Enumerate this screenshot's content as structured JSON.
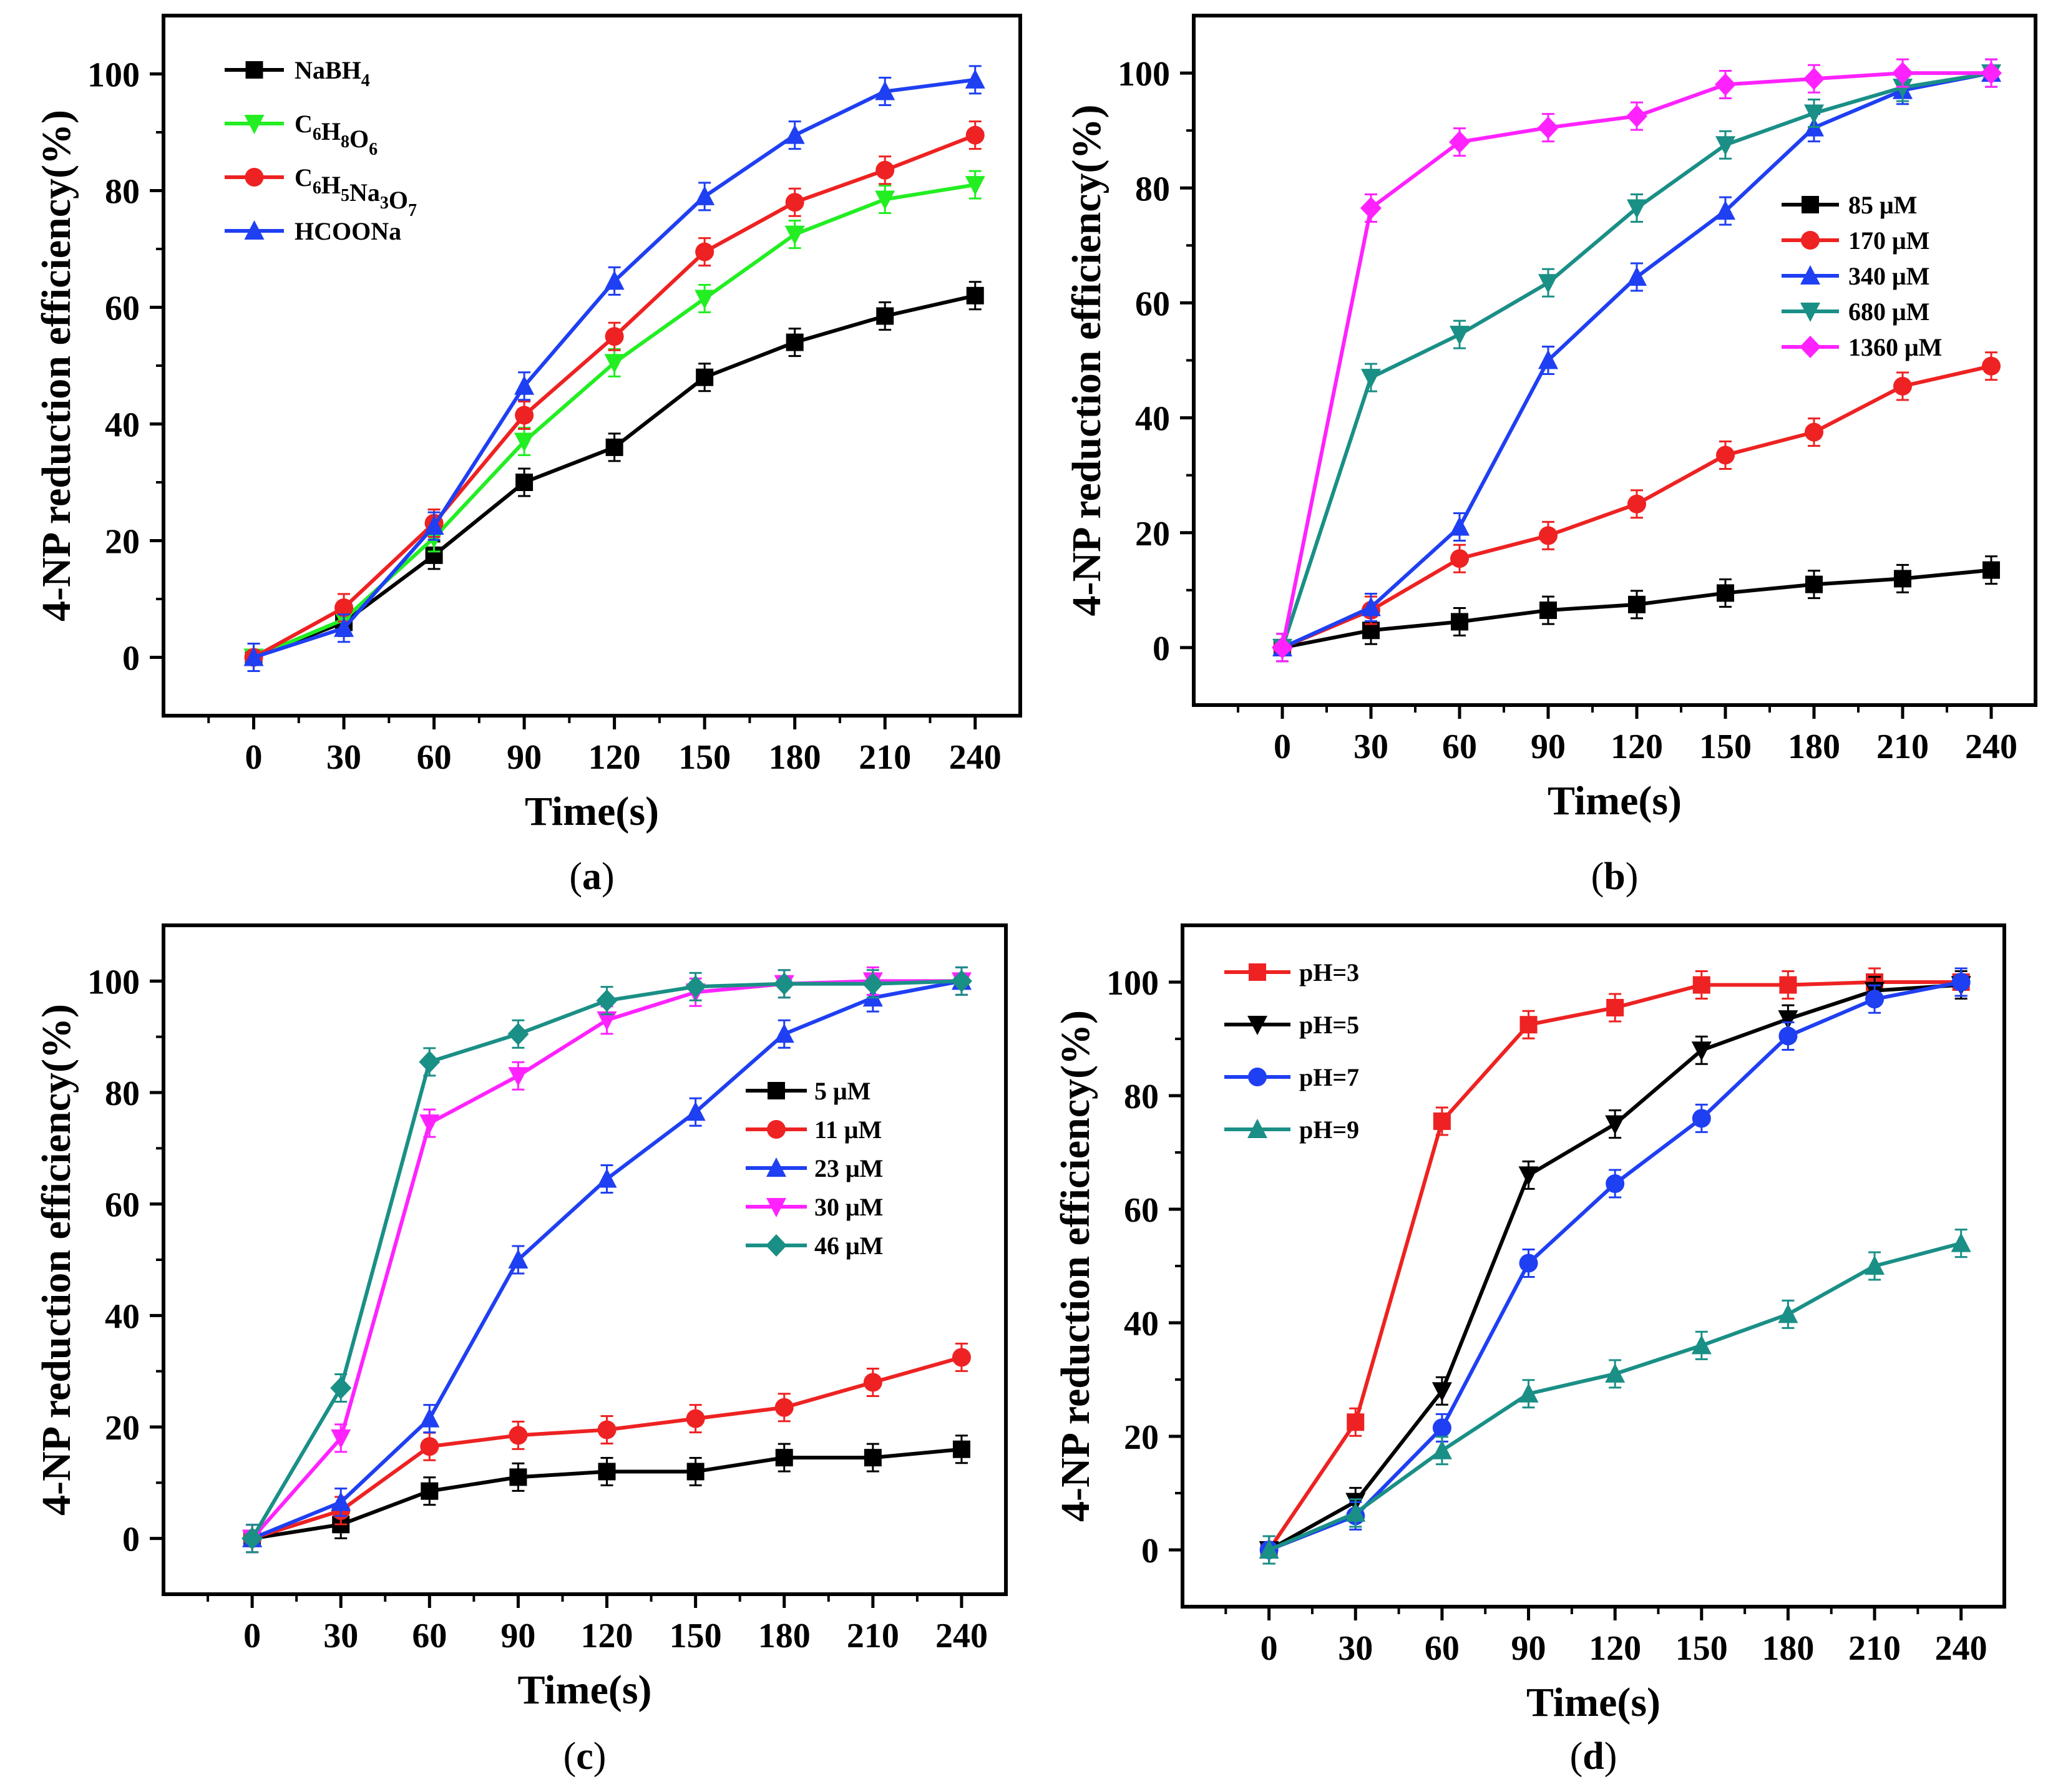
{
  "figure": {
    "chart_data": [
      {
        "id": "a",
        "type": "line",
        "caption_letter": "a",
        "xlabel": "Time(s)",
        "ylabel": "4-NP reduction efficiency(%)",
        "xlim": [
          -30,
          255
        ],
        "ylim": [
          -10,
          110
        ],
        "xticks": [
          "0",
          "30",
          "60",
          "90",
          "120",
          "150",
          "180",
          "210",
          "240"
        ],
        "yticks": [
          "0",
          "20",
          "40",
          "60",
          "80",
          "100"
        ],
        "x": [
          0,
          30,
          60,
          90,
          120,
          150,
          180,
          210,
          240
        ],
        "legend_position": "top-left",
        "series": [
          {
            "name": "NaBH4",
            "label": "NaBH",
            "sub": "4",
            "color": "#000000",
            "marker": "square",
            "values": [
              0,
              6,
              17.5,
              30,
              36,
              48,
              54,
              58.5,
              62
            ]
          },
          {
            "name": "C6H8O6",
            "label": "C",
            "sub": "6",
            "label2": "H",
            "sub2": "8",
            "label3": "O",
            "sub3": "6",
            "color": "#22ee22",
            "marker": "triangle-down",
            "values": [
              0,
              6.5,
              20.5,
              37,
              50.5,
              61.5,
              72.5,
              78.5,
              81
            ]
          },
          {
            "name": "C6H5Na3O7",
            "label": "C",
            "sub": "6",
            "label2": "H",
            "sub2": "5",
            "label3": "Na",
            "sub3": "3",
            "label4": "O",
            "sub4": "7",
            "color": "#ee2222",
            "marker": "circle",
            "values": [
              0,
              8.5,
              23,
              41.5,
              55,
              69.5,
              78,
              83.5,
              89.5
            ]
          },
          {
            "name": "HCOONa",
            "label": "HCOONa",
            "color": "#1f3ff2",
            "marker": "triangle-up",
            "values": [
              0,
              5,
              22.5,
              46.5,
              64.5,
              79,
              89.5,
              97,
              99
            ]
          }
        ]
      },
      {
        "id": "b",
        "type": "line",
        "caption_letter": "b",
        "xlabel": "Time(s)",
        "ylabel": "4-NP reduction efficiency(%)",
        "xlim": [
          -30,
          255
        ],
        "ylim": [
          -10,
          110
        ],
        "xticks": [
          "0",
          "30",
          "60",
          "90",
          "120",
          "150",
          "180",
          "210",
          "240"
        ],
        "yticks": [
          "0",
          "20",
          "40",
          "60",
          "80",
          "100"
        ],
        "x": [
          0,
          30,
          60,
          90,
          120,
          150,
          180,
          210,
          240
        ],
        "legend_position": "center-right",
        "series": [
          {
            "name": "85 μM",
            "label": "85 μM",
            "color": "#000000",
            "marker": "square",
            "values": [
              0,
              3,
              4.5,
              6.5,
              7.5,
              9.5,
              11,
              12,
              13.5
            ]
          },
          {
            "name": "170 μM",
            "label": "170 μM",
            "color": "#ee2222",
            "marker": "circle",
            "values": [
              0,
              6.5,
              15.5,
              19.5,
              25,
              33.5,
              37.5,
              45.5,
              49
            ]
          },
          {
            "name": "340 μM",
            "label": "340 μM",
            "color": "#1f3ff2",
            "marker": "triangle-up",
            "values": [
              0,
              7,
              21,
              50,
              64.5,
              76,
              90.5,
              97,
              100
            ]
          },
          {
            "name": "680 μM",
            "label": "680 μM",
            "color": "#1a8f86",
            "marker": "triangle-down",
            "values": [
              0,
              47,
              54.5,
              63.5,
              76.5,
              87.5,
              93,
              97.5,
              100
            ]
          },
          {
            "name": "1360 μM",
            "label": "1360 μM",
            "color": "#ff22ff",
            "marker": "diamond",
            "values": [
              0,
              76.5,
              88,
              90.5,
              92.5,
              98,
              99,
              100,
              100
            ]
          }
        ]
      },
      {
        "id": "c",
        "type": "line",
        "caption_letter": "c",
        "xlabel": "Time(s)",
        "ylabel": "4-NP reduction efficiency(%)",
        "xlim": [
          -30,
          255
        ],
        "ylim": [
          -10,
          110
        ],
        "xticks": [
          "0",
          "30",
          "60",
          "90",
          "120",
          "150",
          "180",
          "210",
          "240"
        ],
        "yticks": [
          "0",
          "20",
          "40",
          "60",
          "80",
          "100"
        ],
        "x": [
          0,
          30,
          60,
          90,
          120,
          150,
          180,
          210,
          240
        ],
        "legend_position": "center-right",
        "series": [
          {
            "name": "5 μM",
            "label": "5 μM",
            "color": "#000000",
            "marker": "square",
            "values": [
              0,
              2.5,
              8.5,
              11,
              12,
              12,
              14.5,
              14.5,
              16
            ]
          },
          {
            "name": "11 μM",
            "label": "11 μM",
            "color": "#ee2222",
            "marker": "circle",
            "values": [
              0,
              5,
              16.5,
              18.5,
              19.5,
              21.5,
              23.5,
              28,
              32.5
            ]
          },
          {
            "name": "23 μM",
            "label": "23 μM",
            "color": "#1f3ff2",
            "marker": "triangle-up",
            "values": [
              0,
              6.5,
              21.5,
              50,
              64.5,
              76.5,
              90.5,
              97,
              100
            ]
          },
          {
            "name": "30 μM",
            "label": "30 μM",
            "color": "#ff22ff",
            "marker": "triangle-down",
            "values": [
              0,
              18,
              74.5,
              83,
              93,
              98,
              99.5,
              100,
              100
            ]
          },
          {
            "name": "46 μM",
            "label": "46 μM",
            "color": "#1a8f86",
            "marker": "diamond",
            "values": [
              0,
              27,
              85.5,
              90.5,
              96.5,
              99,
              99.5,
              99.5,
              100
            ]
          }
        ]
      },
      {
        "id": "d",
        "type": "line",
        "caption_letter": "d",
        "xlabel": "Time(s)",
        "ylabel": "4-NP reduction efficiency(%)",
        "xlim": [
          -30,
          255
        ],
        "ylim": [
          -10,
          110
        ],
        "xticks": [
          "0",
          "30",
          "60",
          "90",
          "120",
          "150",
          "180",
          "210",
          "240"
        ],
        "yticks": [
          "0",
          "20",
          "40",
          "60",
          "80",
          "100"
        ],
        "x": [
          0,
          30,
          60,
          90,
          120,
          150,
          180,
          210,
          240
        ],
        "legend_position": "top-left",
        "series": [
          {
            "name": "pH=3",
            "label": "pH=3",
            "color": "#ee2222",
            "marker": "square",
            "values": [
              0,
              22.5,
              75.5,
              92.5,
              95.5,
              99.5,
              99.5,
              100,
              100
            ]
          },
          {
            "name": "pH=5",
            "label": "pH=5",
            "color": "#000000",
            "marker": "triangle-down",
            "values": [
              0,
              8.5,
              28,
              66,
              75,
              88,
              93.5,
              98.5,
              99.5
            ]
          },
          {
            "name": "pH=7",
            "label": "pH=7",
            "color": "#1f3ff2",
            "marker": "circle",
            "values": [
              0,
              6,
              21.5,
              50.5,
              64.5,
              76,
              90.5,
              97,
              100
            ]
          },
          {
            "name": "pH=9",
            "label": "pH=9",
            "color": "#1a8f86",
            "marker": "triangle-up",
            "values": [
              0,
              6.5,
              17.5,
              27.5,
              31,
              36,
              41.5,
              50,
              54
            ]
          }
        ]
      }
    ]
  }
}
